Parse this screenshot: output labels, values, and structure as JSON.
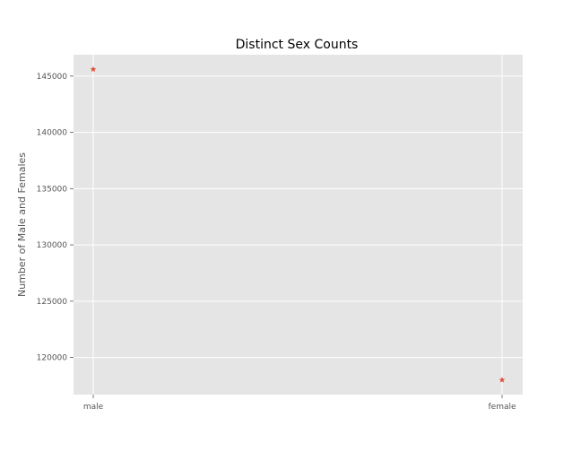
{
  "chart_data": {
    "type": "scatter",
    "title": "Distinct Sex Counts",
    "xlabel": "",
    "ylabel": "Number of Male and Females",
    "categories": [
      "male",
      "female"
    ],
    "values": [
      145600,
      118000
    ],
    "ylim": [
      116700,
      146900
    ],
    "yticks": [
      120000,
      125000,
      130000,
      135000,
      140000,
      145000
    ],
    "ytick_labels": [
      "120000",
      "125000",
      "130000",
      "135000",
      "140000",
      "145000"
    ],
    "marker": "star",
    "grid": true,
    "legend": "none",
    "colors": {
      "marker": "#E24A33",
      "plot_background": "#E5E5E5",
      "grid": "#FFFFFF",
      "text": "#555555"
    }
  }
}
